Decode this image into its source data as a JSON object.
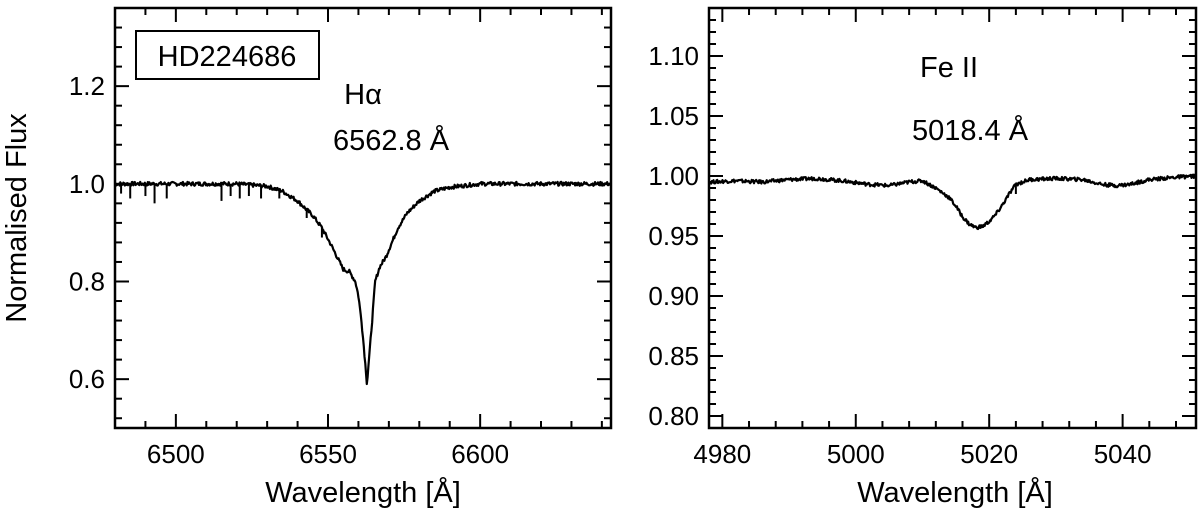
{
  "figure": {
    "ylabel": "Normalised Flux",
    "xlabel": "Wavelength [Å]"
  },
  "chart_data": [
    {
      "type": "line",
      "star_label": "HD224686",
      "line_name": "Hα",
      "line_wavelength": "6562.8 Å",
      "xlabel": "Wavelength [Å]",
      "ylabel": "Normalised Flux",
      "xlim": [
        6480,
        6643
      ],
      "ylim": [
        0.5,
        1.36
      ],
      "xticks": [
        6500,
        6550,
        6600
      ],
      "xtick_labels": [
        "6500",
        "6550",
        "6600"
      ],
      "yticks": [
        0.6,
        0.8,
        1.0,
        1.2
      ],
      "ytick_labels": [
        "0.6",
        "0.8",
        "1.0",
        "1.2"
      ],
      "grid": false,
      "series": [
        {
          "x": [
            6480,
            6490,
            6500,
            6510,
            6520,
            6530,
            6535,
            6540,
            6545,
            6548,
            6551,
            6553,
            6555,
            6557,
            6559,
            6560,
            6561,
            6562,
            6562.8,
            6563.6,
            6564.5,
            6565.5,
            6567,
            6569,
            6571,
            6573,
            6576,
            6580,
            6585,
            6590,
            6600,
            6610,
            6620,
            6630,
            6643
          ],
          "y": [
            1.0,
            1.0,
            1.0,
            1.0,
            1.0,
            0.995,
            0.985,
            0.965,
            0.935,
            0.91,
            0.875,
            0.85,
            0.825,
            0.82,
            0.8,
            0.77,
            0.72,
            0.65,
            0.59,
            0.65,
            0.72,
            0.8,
            0.83,
            0.85,
            0.88,
            0.91,
            0.94,
            0.965,
            0.985,
            0.993,
            1.0,
            1.0,
            1.0,
            1.0,
            1.0
          ]
        }
      ],
      "dips": [
        {
          "x": 6482,
          "y": 0.98
        },
        {
          "x": 6485,
          "y": 0.97
        },
        {
          "x": 6490,
          "y": 0.975
        },
        {
          "x": 6493,
          "y": 0.96
        },
        {
          "x": 6497,
          "y": 0.97
        },
        {
          "x": 6515,
          "y": 0.965
        },
        {
          "x": 6518,
          "y": 0.975
        },
        {
          "x": 6521,
          "y": 0.97
        },
        {
          "x": 6524,
          "y": 0.975
        },
        {
          "x": 6528,
          "y": 0.97
        },
        {
          "x": 6534,
          "y": 0.97
        },
        {
          "x": 6543,
          "y": 0.93
        },
        {
          "x": 6548,
          "y": 0.89
        }
      ]
    },
    {
      "type": "line",
      "line_name": "Fe II",
      "line_wavelength": "5018.4 Å",
      "xlabel": "Wavelength [Å]",
      "xlim": [
        4978,
        5051
      ],
      "ylim": [
        0.79,
        1.14
      ],
      "xticks": [
        4980,
        5000,
        5020,
        5040
      ],
      "xtick_labels": [
        "4980",
        "5000",
        "5020",
        "5040"
      ],
      "yticks": [
        0.8,
        0.85,
        0.9,
        0.95,
        1.0,
        1.05,
        1.1
      ],
      "ytick_labels": [
        "0.80",
        "0.85",
        "0.90",
        "0.95",
        "1.00",
        "1.05",
        "1.10"
      ],
      "grid": false,
      "series": [
        {
          "x": [
            4978,
            4982,
            4986,
            4990,
            4994,
            4998,
            5002,
            5005,
            5008,
            5010,
            5012,
            5014,
            5015,
            5016,
            5017,
            5018,
            5019,
            5020,
            5021,
            5022,
            5023,
            5024,
            5026,
            5030,
            5034,
            5037,
            5039,
            5041,
            5044,
            5048,
            5051
          ],
          "y": [
            0.995,
            0.996,
            0.995,
            0.997,
            0.998,
            0.996,
            0.993,
            0.992,
            0.995,
            0.996,
            0.99,
            0.982,
            0.975,
            0.966,
            0.96,
            0.957,
            0.958,
            0.962,
            0.968,
            0.976,
            0.985,
            0.993,
            0.997,
            0.998,
            0.997,
            0.993,
            0.992,
            0.993,
            0.997,
            0.999,
            1.0
          ]
        }
      ],
      "dips": [
        {
          "x": 5024,
          "y": 0.985
        }
      ]
    }
  ]
}
